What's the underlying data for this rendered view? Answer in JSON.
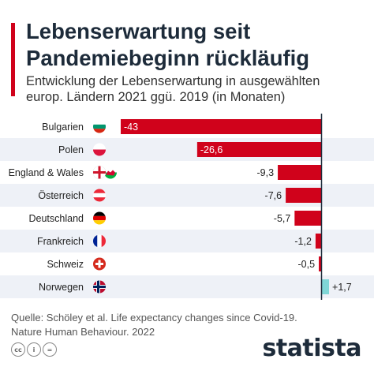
{
  "header": {
    "title_line1": "Lebenserwartung seit",
    "title_line2": "Pandemiebeginn rückläufig",
    "subtitle_line1": "Entwicklung der Lebenserwartung in ausgewählten",
    "subtitle_line2": "europ. Ländern 2021 ggü. 2019 (in Monaten)"
  },
  "chart_data": {
    "type": "bar",
    "orientation": "horizontal",
    "categories": [
      "Bulgarien",
      "Polen",
      "England & Wales",
      "Österreich",
      "Deutschland",
      "Frankreich",
      "Schweiz",
      "Norwegen"
    ],
    "values": [
      -43,
      -26.6,
      -9.3,
      -7.6,
      -5.7,
      -1.2,
      -0.5,
      1.7
    ],
    "value_labels": [
      "-43",
      "-26,6",
      "-9,3",
      "-7,6",
      "-5,7",
      "-1,2",
      "-0,5",
      "+1,7"
    ],
    "flags": [
      "flag-bulgaria",
      "flag-poland",
      "flag-england-wales",
      "flag-austria",
      "flag-germany",
      "flag-france",
      "flag-switzerland",
      "flag-norway"
    ],
    "colors": {
      "negative": "#d0021b",
      "positive": "#7fd6d6",
      "stripe": "#eef1f7"
    },
    "xlim": [
      -43,
      1.7
    ],
    "grid": false
  },
  "source": {
    "line1": "Quelle: Schöley et al. Life expectancy changes since Covid-19.",
    "line2": "Nature Human Behaviour. 2022"
  },
  "footer": {
    "cc_icons": [
      "cc-icon",
      "by-icon",
      "nd-icon"
    ],
    "cc_glyphs": [
      "cc",
      "i",
      "="
    ],
    "logo": "statista"
  }
}
